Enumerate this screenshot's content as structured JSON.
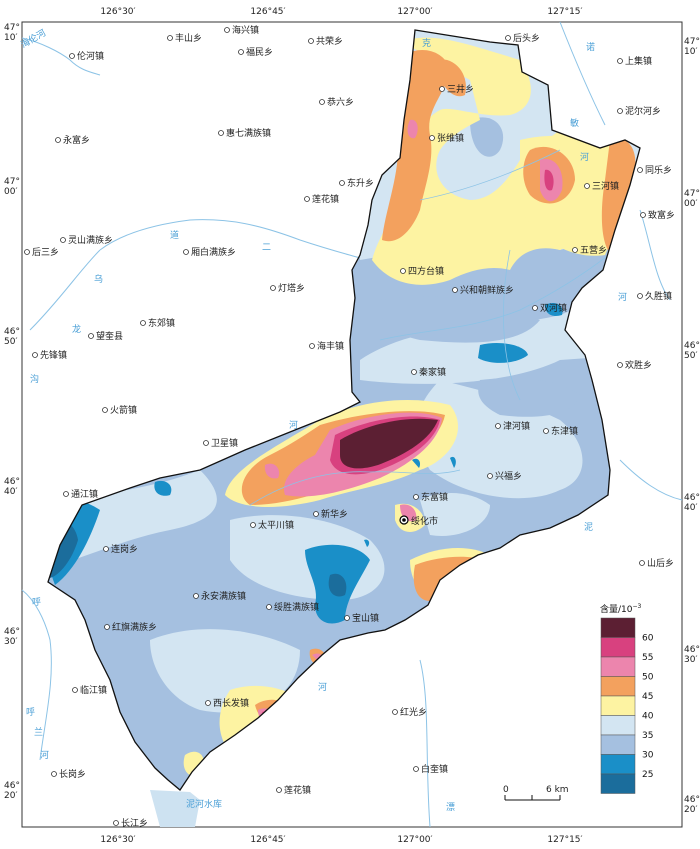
{
  "top_ticks": [
    "126°30′",
    "126°45′",
    "127°00′",
    "127°15′"
  ],
  "bottom_ticks": [
    "126°30′",
    "126°45′",
    "127°00′",
    "127°15′"
  ],
  "left_ticks": [
    {
      "deg": "47°",
      "min": "10′"
    },
    {
      "deg": "47°",
      "min": "00′"
    },
    {
      "deg": "46°",
      "min": "50′"
    },
    {
      "deg": "46°",
      "min": "40′"
    },
    {
      "deg": "46°",
      "min": "30′"
    },
    {
      "deg": "46°",
      "min": "20′"
    }
  ],
  "right_ticks": [
    {
      "deg": "47°",
      "min": "10′"
    },
    {
      "deg": "47°",
      "min": "00′"
    },
    {
      "deg": "46°",
      "min": "50′"
    },
    {
      "deg": "46°",
      "min": "40′"
    },
    {
      "deg": "46°",
      "min": "30′"
    },
    {
      "deg": "46°",
      "min": "20′"
    }
  ],
  "towns": [
    {
      "name": "伦河镇",
      "capital": true
    },
    {
      "name": "丰山乡"
    },
    {
      "name": "海兴镇"
    },
    {
      "name": "福民乡"
    },
    {
      "name": "共荣乡"
    },
    {
      "name": "后头乡"
    },
    {
      "name": "上集镇"
    },
    {
      "name": "三井乡"
    },
    {
      "name": "恭六乡"
    },
    {
      "name": "泥尔河乡"
    },
    {
      "name": "永富乡"
    },
    {
      "name": "惠七满族镇"
    },
    {
      "name": "张维镇"
    },
    {
      "name": "同乐乡"
    },
    {
      "name": "东升乡"
    },
    {
      "name": "三河镇"
    },
    {
      "name": "莲花镇"
    },
    {
      "name": "致富乡"
    },
    {
      "name": "灵山满族乡"
    },
    {
      "name": "后三乡"
    },
    {
      "name": "厢白满族乡"
    },
    {
      "name": "五营乡"
    },
    {
      "name": "四方台镇"
    },
    {
      "name": "灯塔乡"
    },
    {
      "name": "兴和朝鲜族乡"
    },
    {
      "name": "久胜镇"
    },
    {
      "name": "双河镇"
    },
    {
      "name": "东郊镇"
    },
    {
      "name": "望奎县"
    },
    {
      "name": "海丰镇"
    },
    {
      "name": "先锋镇"
    },
    {
      "name": "欢胜乡"
    },
    {
      "name": "秦家镇"
    },
    {
      "name": "火箭镇"
    },
    {
      "name": "津河镇"
    },
    {
      "name": "东津镇"
    },
    {
      "name": "卫星镇"
    },
    {
      "name": "兴福乡"
    },
    {
      "name": "通江镇"
    },
    {
      "name": "东富镇"
    },
    {
      "name": "新华乡"
    },
    {
      "name": "太平川镇"
    },
    {
      "name": "绥化市",
      "city": true
    },
    {
      "name": "连岗乡"
    },
    {
      "name": "山后乡"
    },
    {
      "name": "永安满族镇"
    },
    {
      "name": "绥胜满族镇"
    },
    {
      "name": "宝山镇"
    },
    {
      "name": "红旗满族乡"
    },
    {
      "name": "临江镇"
    },
    {
      "name": "西长发镇"
    },
    {
      "name": "红光乡"
    },
    {
      "name": "白奎镇"
    },
    {
      "name": "长岗乡"
    },
    {
      "name": "莲花镇"
    },
    {
      "name": "长江乡"
    }
  ],
  "water_labels": [
    "海伦河",
    "克",
    "音",
    "敏",
    "河",
    "诺",
    "道",
    "二",
    "乌",
    "龙",
    "河",
    "沟",
    "河",
    "泥",
    "河",
    "呼",
    "兰",
    "河",
    "呼",
    "泥河水库",
    "漂"
  ],
  "legend": {
    "title": "含量/10",
    "title_sup": "−3",
    "classes": [
      {
        "label": "60",
        "color": "#5c1f33"
      },
      {
        "label": "55",
        "color": "#d8417f"
      },
      {
        "label": "50",
        "color": "#ec85ad"
      },
      {
        "label": "45",
        "color": "#f3a15e"
      },
      {
        "label": "40",
        "color": "#fdf3a2"
      },
      {
        "label": "35",
        "color": "#d3e5f2"
      },
      {
        "label": "30",
        "color": "#a5c0e0"
      },
      {
        "label": "25",
        "color": "#1a8fc8"
      },
      {
        "label": "",
        "color": "#1b6d9c"
      }
    ]
  },
  "scalebar": {
    "zero": "0",
    "end": "6 km"
  }
}
